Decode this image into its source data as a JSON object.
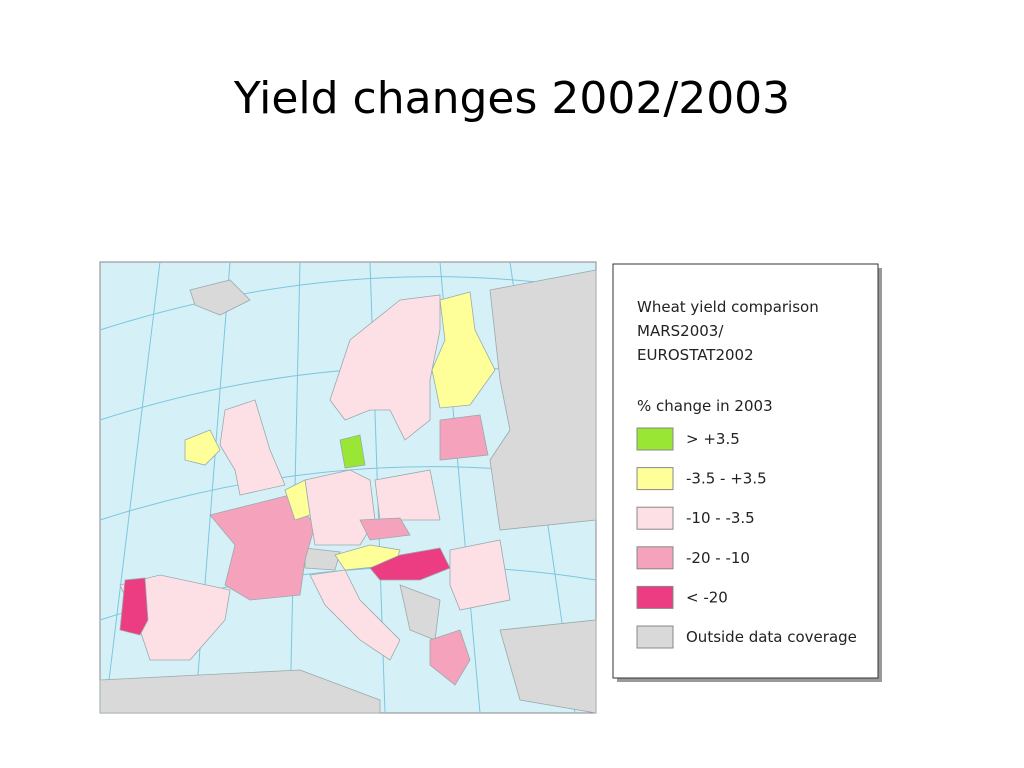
{
  "title": "Yield changes 2002/2003",
  "legend": {
    "title": [
      "Wheat yield comparison",
      "MARS2003/",
      "EUROSTAT2002"
    ],
    "subtitle": "% change in 2003",
    "items": [
      {
        "label": "> +3.5",
        "color": "#99e635"
      },
      {
        "label": "-3.5 - +3.5",
        "color": "#ffff99"
      },
      {
        "label": "-10 - -3.5",
        "color": "#fde0e6"
      },
      {
        "label": "-20 - -10",
        "color": "#f5a3bd"
      },
      {
        "label": "< -20",
        "color": "#ec3d82"
      },
      {
        "label": "Outside data coverage",
        "color": "#d9d9d9"
      }
    ]
  }
}
